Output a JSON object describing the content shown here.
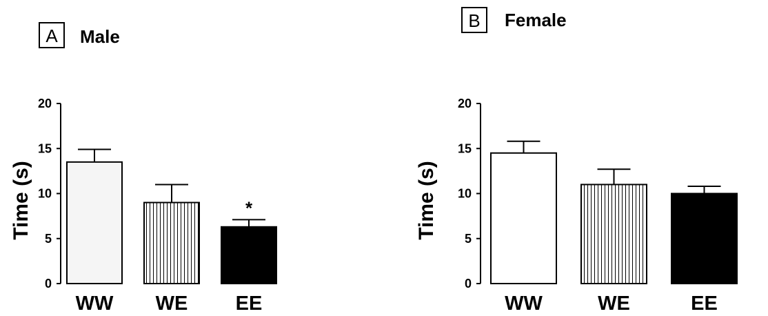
{
  "panels": [
    {
      "letter": "A",
      "title": "Male"
    },
    {
      "letter": "B",
      "title": "Female"
    }
  ],
  "chart_data": [
    {
      "type": "bar",
      "title": "Male",
      "ylabel": "Time (s)",
      "categories": [
        "WW",
        "WE",
        "EE"
      ],
      "values": [
        13.5,
        9.0,
        6.3
      ],
      "errors": [
        1.4,
        2.0,
        0.8
      ],
      "significance": [
        "",
        "",
        "*"
      ],
      "ylim": [
        0,
        20
      ],
      "yticks": [
        0,
        5,
        10,
        15,
        20
      ],
      "bar_fills": [
        "light-gray",
        "vertical-hatch",
        "black"
      ]
    },
    {
      "type": "bar",
      "title": "Female",
      "ylabel": "Time (s)",
      "categories": [
        "WW",
        "WE",
        "EE"
      ],
      "values": [
        14.5,
        11.0,
        10.0
      ],
      "errors": [
        1.3,
        1.7,
        0.8
      ],
      "significance": [
        "",
        "",
        ""
      ],
      "ylim": [
        0,
        20
      ],
      "yticks": [
        0,
        5,
        10,
        15,
        20
      ],
      "bar_fills": [
        "white",
        "vertical-hatch",
        "black"
      ]
    }
  ],
  "colors": {
    "ink": "#000000",
    "light_fill": "#f5f5f5",
    "white_fill": "#ffffff"
  }
}
